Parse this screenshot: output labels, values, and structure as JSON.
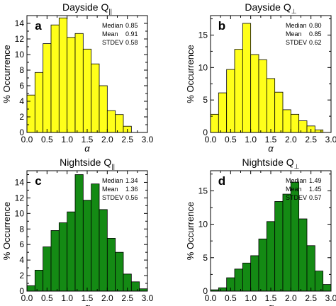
{
  "chart_data": [
    {
      "type": "bar",
      "panel_letter": "a",
      "title_main": "Dayside Q",
      "title_sub": "||",
      "xlabel": "α",
      "ylabel": "% Occurrence",
      "bar_color": "#ffff1a",
      "bin_width": 0.2,
      "x": [
        0.0,
        0.2,
        0.4,
        0.6,
        0.8,
        1.0,
        1.2,
        1.4,
        1.6,
        1.8,
        2.0,
        2.2,
        2.4
      ],
      "values": [
        4.8,
        7.7,
        11.4,
        13.8,
        14.7,
        12.2,
        12.7,
        10.7,
        8.8,
        6.0,
        2.8,
        2.3,
        0.8
      ],
      "xlim": [
        0,
        3
      ],
      "ylim": [
        0,
        15
      ],
      "xticks": [
        "0.0",
        "0.5",
        "1.0",
        "1.5",
        "2.0",
        "2.5",
        "3.0"
      ],
      "yticks": [
        "0",
        "2",
        "4",
        "6",
        "8",
        "10",
        "12",
        "14"
      ],
      "stats": [
        {
          "label": "Median",
          "value": "0.85"
        },
        {
          "label": "Mean",
          "value": "0.91"
        },
        {
          "label": "STDEV",
          "value": "0.58"
        }
      ]
    },
    {
      "type": "bar",
      "panel_letter": "b",
      "title_main": "Dayside Q",
      "title_sub": "⊥",
      "xlabel": "α",
      "ylabel": "% Occurrence",
      "bar_color": "#ffff1a",
      "bin_width": 0.2,
      "x": [
        0.0,
        0.2,
        0.4,
        0.6,
        0.8,
        1.0,
        1.2,
        1.4,
        1.6,
        1.8,
        2.0,
        2.2,
        2.4,
        2.6
      ],
      "values": [
        2.8,
        6.1,
        9.7,
        12.8,
        16.8,
        12.0,
        11.2,
        8.3,
        6.2,
        3.5,
        2.8,
        1.8,
        1.0,
        0.4
      ],
      "xlim": [
        0,
        3
      ],
      "ylim": [
        0,
        18
      ],
      "xticks": [
        "0.0",
        "0.5",
        "1.0",
        "1.5",
        "2.0",
        "2.5",
        "3.0"
      ],
      "yticks": [
        "0",
        "5",
        "10",
        "15"
      ],
      "stats": [
        {
          "label": "Median",
          "value": "0.80"
        },
        {
          "label": "Mean",
          "value": "0.85"
        },
        {
          "label": "STDEV",
          "value": "0.62"
        }
      ]
    },
    {
      "type": "bar",
      "panel_letter": "c",
      "title_main": "Nightside Q",
      "title_sub": "||",
      "xlabel": "α",
      "ylabel": "% Occurrence",
      "bar_color": "#148a14",
      "bin_width": 0.2,
      "x": [
        0.0,
        0.2,
        0.4,
        0.6,
        0.8,
        1.0,
        1.2,
        1.4,
        1.6,
        1.8,
        2.0,
        2.2,
        2.4,
        2.6,
        2.8
      ],
      "values": [
        0.7,
        2.7,
        5.7,
        7.8,
        8.8,
        10.2,
        15.0,
        11.7,
        13.8,
        10.5,
        6.8,
        5.0,
        2.2,
        1.2,
        0.3
      ],
      "xlim": [
        0,
        3
      ],
      "ylim": [
        0,
        15.5
      ],
      "xticks": [
        "0.0",
        "0.5",
        "1.0",
        "1.5",
        "2.0",
        "2.5",
        "3.0"
      ],
      "yticks": [
        "0",
        "2",
        "4",
        "6",
        "8",
        "10",
        "12",
        "14"
      ],
      "stats": [
        {
          "label": "Median",
          "value": "1.34"
        },
        {
          "label": "Mean",
          "value": "1.36"
        },
        {
          "label": "STDEV",
          "value": "0.56"
        }
      ]
    },
    {
      "type": "bar",
      "panel_letter": "d",
      "title_main": "Nightside Q",
      "title_sub": "⊥",
      "xlabel": "α",
      "ylabel": "% Occurrence",
      "bar_color": "#148a14",
      "bin_width": 0.2,
      "x": [
        0.0,
        0.2,
        0.4,
        0.6,
        0.8,
        1.0,
        1.2,
        1.4,
        1.6,
        1.8,
        2.0,
        2.2,
        2.4,
        2.6,
        2.8
      ],
      "values": [
        0.2,
        0.5,
        2.0,
        3.3,
        4.2,
        5.3,
        7.8,
        10.4,
        13.4,
        14.5,
        16.3,
        10.8,
        6.8,
        3.0,
        1.0
      ],
      "xlim": [
        0,
        3
      ],
      "ylim": [
        0,
        18
      ],
      "xticks": [
        "0.0",
        "0.5",
        "1.0",
        "1.5",
        "2.0",
        "2.5",
        "3.0"
      ],
      "yticks": [
        "0",
        "5",
        "10",
        "15"
      ],
      "stats": [
        {
          "label": "Median",
          "value": "1.49"
        },
        {
          "label": "Mean",
          "value": "1.45"
        },
        {
          "label": "STDEV",
          "value": "0.57"
        }
      ]
    }
  ]
}
